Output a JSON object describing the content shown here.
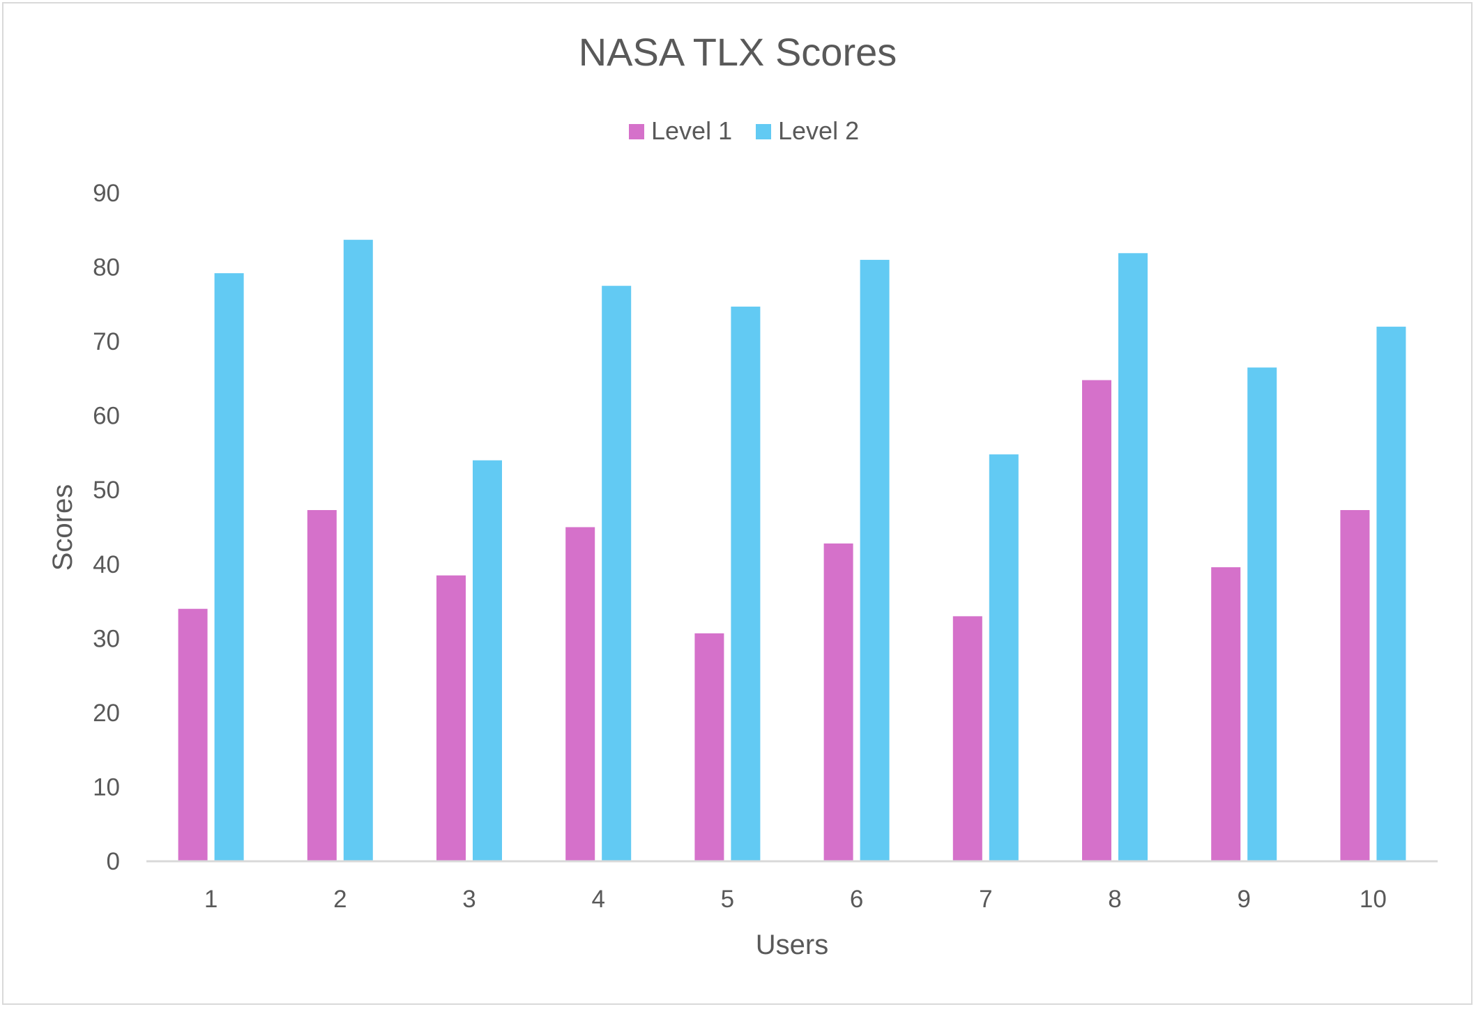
{
  "chart_data": {
    "type": "bar",
    "title": "NASA TLX Scores",
    "xlabel": "Users",
    "ylabel": "Scores",
    "categories": [
      "1",
      "2",
      "3",
      "4",
      "5",
      "6",
      "7",
      "8",
      "9",
      "10"
    ],
    "series": [
      {
        "name": "Level 1",
        "color": "#d571ca",
        "values": [
          34,
          47.3,
          38.5,
          45,
          30.7,
          42.8,
          33,
          64.8,
          39.6,
          47.3
        ]
      },
      {
        "name": "Level 2",
        "color": "#62caf3",
        "values": [
          79.2,
          83.7,
          54,
          77.5,
          74.7,
          81,
          54.8,
          81.9,
          66.5,
          72
        ]
      }
    ],
    "ylim": [
      0,
      90
    ],
    "yticks": [
      "0",
      "10",
      "20",
      "30",
      "40",
      "50",
      "60",
      "70",
      "80",
      "90"
    ],
    "grid": false,
    "legend_position": "top-center"
  }
}
